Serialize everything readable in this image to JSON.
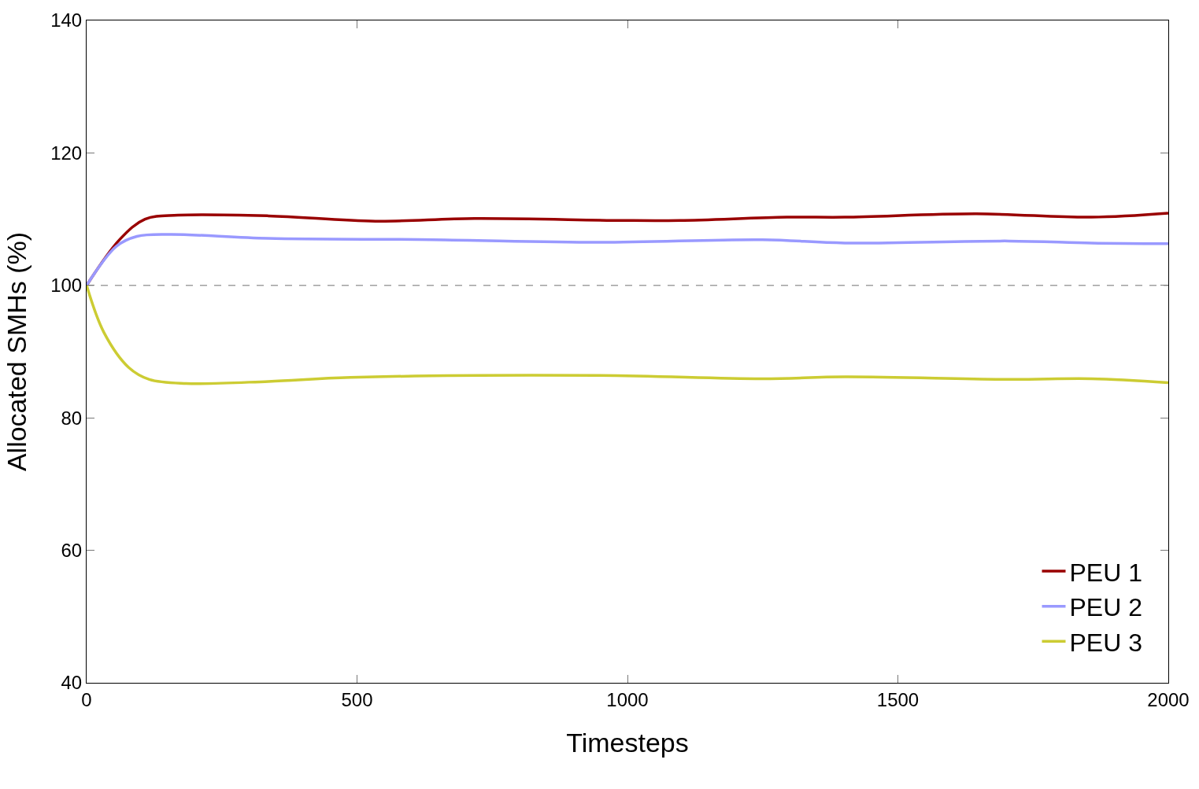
{
  "chart_data": {
    "type": "line",
    "xlabel": "Timesteps",
    "ylabel": "Allocated SMHs (%)",
    "xlim": [
      0,
      2000
    ],
    "xticks": [
      0,
      500,
      1000,
      1500,
      2000
    ],
    "ylim": [
      40,
      140
    ],
    "yticks": [
      40,
      60,
      80,
      100,
      120,
      140
    ],
    "grid": false,
    "legend": "bottom right",
    "marker": "none",
    "line_style": "solid",
    "ref_lines": [
      {
        "axis": "y",
        "value": 100,
        "color": "#a0a0a0",
        "line_style": "dashed"
      }
    ],
    "series": [
      {
        "name": "PEU 1",
        "color": "#990000",
        "x": [
          0,
          62,
          108,
          169,
          336,
          534,
          717,
          991,
          1097,
          1295,
          1402,
          1645,
          1858,
          2000
        ],
        "values": [
          100,
          107,
          110,
          110.6,
          110.5,
          109.7,
          110.1,
          109.8,
          109.8,
          110.3,
          110.3,
          110.8,
          110.3,
          110.9
        ]
      },
      {
        "name": "PEU 2",
        "color": "#9999ff",
        "x": [
          0,
          55,
          93,
          154,
          336,
          640,
          945,
          1250,
          1402,
          1706,
          1858,
          2000
        ],
        "values": [
          100,
          105.9,
          107.4,
          107.7,
          107.1,
          106.9,
          106.5,
          106.9,
          106.4,
          106.7,
          106.4,
          106.3
        ]
      },
      {
        "name": "PEU 3",
        "color": "#cccc33",
        "x": [
          0,
          32,
          78,
          116,
          184,
          336,
          488,
          945,
          1250,
          1402,
          1706,
          1858,
          2000
        ],
        "values": [
          100,
          92.9,
          87.6,
          85.8,
          85.2,
          85.5,
          86.1,
          86.4,
          85.9,
          86.2,
          85.8,
          85.9,
          85.3
        ]
      }
    ]
  }
}
